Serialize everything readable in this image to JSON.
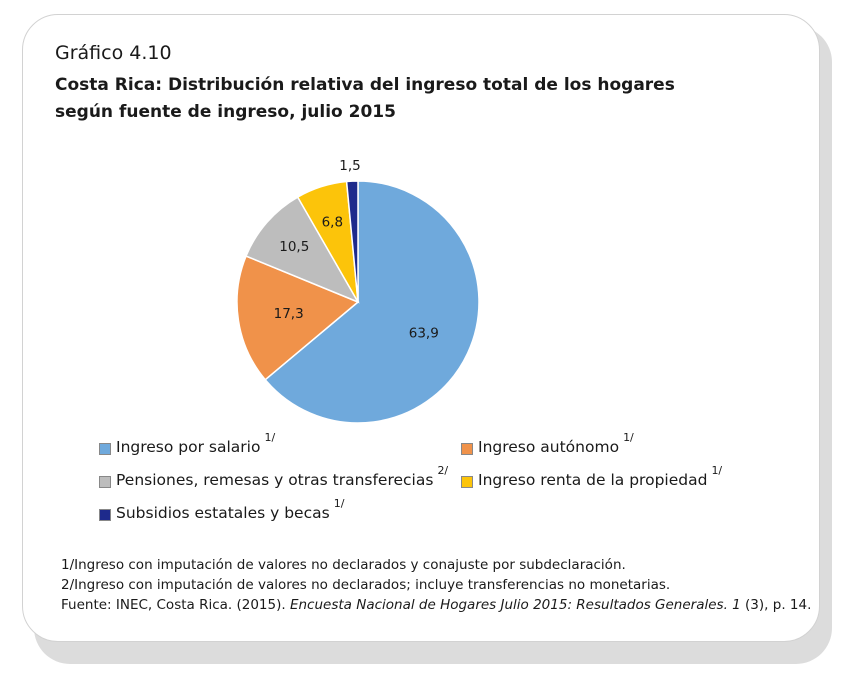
{
  "chart_number": "Gráfico 4.10",
  "chart_data": {
    "type": "pie",
    "title": "Costa Rica: Distribución relativa del ingreso total de los hogares según fuente de ingreso, julio 2015",
    "categories": [
      "Ingreso por salario",
      "Ingreso autónomo",
      "Pensiones, remesas y otras transferecias",
      "Ingreso renta de la propiedad",
      "Subsidios estatales y becas"
    ],
    "values": [
      63.9,
      17.3,
      10.5,
      6.8,
      1.5
    ],
    "value_labels": [
      "63,9",
      "17,3",
      "10,5",
      "6,8",
      "1,5"
    ],
    "colors": [
      "#6fa9dc",
      "#f0924a",
      "#bdbdbd",
      "#fcc40a",
      "#1e2a8c"
    ],
    "start_angle": "12 o'clock",
    "direction": "clockwise"
  },
  "legend": [
    {
      "label": "Ingreso por salario",
      "note": "1/",
      "color": "#6fa9dc"
    },
    {
      "label": "Ingreso autónomo",
      "note": "1/",
      "color": "#f0924a"
    },
    {
      "label": "Pensiones, remesas y otras transferecias",
      "note": "2/",
      "color": "#bdbdbd"
    },
    {
      "label": "Ingreso renta de la propiedad",
      "note": "1/",
      "color": "#fcc40a"
    },
    {
      "label": "Subsidios estatales y becas",
      "note": "1/",
      "color": "#1e2a8c"
    }
  ],
  "notes": {
    "note1": "1/Ingreso con imputación de valores no declarados y conajuste por subdeclaración.",
    "note2": "2/Ingreso con imputación de valores no declarados; incluye transferencias no monetarias.",
    "source_prefix": "Fuente: INEC, Costa Rica. (2015). ",
    "source_italic": "Encuesta Nacional de Hogares Julio 2015: Resultados Generales. 1",
    "source_suffix": " (3), p. 14."
  }
}
